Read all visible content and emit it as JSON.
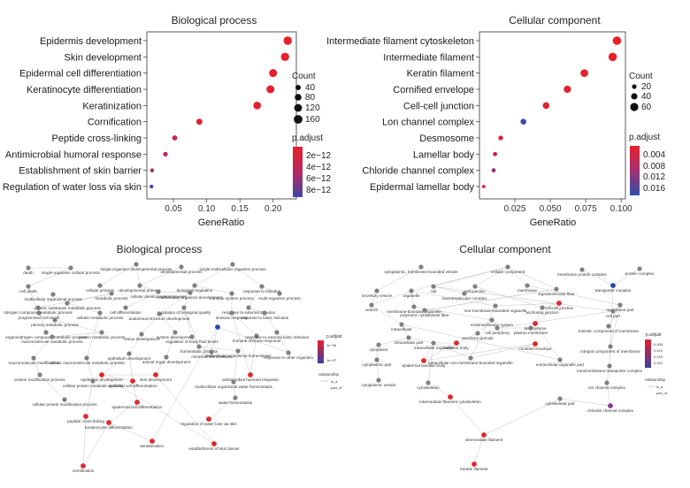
{
  "chart_data": [
    {
      "type": "scatter",
      "title": "Biological process",
      "xlabel": "GeneRatio",
      "xlim": [
        0.01,
        0.235
      ],
      "xticks": [
        "0.05",
        "0.10",
        "0.15",
        "0.20"
      ],
      "categories": [
        "Epidermis development",
        "Skin development",
        "Epidermal cell differentiation",
        "Keratinocyte differentiation",
        "Keratinization",
        "Cornification",
        "Peptide cross-linking",
        "Antimicrobial humoral response",
        "Establishment of skin barrier",
        "Regulation of water loss via skin"
      ],
      "gene_ratio": [
        0.222,
        0.218,
        0.2,
        0.196,
        0.176,
        0.089,
        0.052,
        0.038,
        0.018,
        0.017
      ],
      "count": [
        190,
        186,
        171,
        167,
        150,
        76,
        44,
        32,
        15,
        14
      ],
      "p_adjust": [
        1e-13,
        1e-13,
        2e-13,
        2e-13,
        4e-13,
        1e-12,
        3e-12,
        4e-12,
        6e-12,
        1e-11
      ],
      "legend": {
        "size_title": "Count",
        "size_values": [
          "40",
          "80",
          "120",
          "160"
        ],
        "color_title": "p.adjust",
        "color_values": [
          "2e−12",
          "4e−12",
          "6e−12",
          "8e−12"
        ]
      }
    },
    {
      "type": "scatter",
      "title": "Cellular component",
      "xlabel": "GeneRatio",
      "xlim": [
        0.0,
        0.103
      ],
      "xticks": [
        "0.025",
        "0.050",
        "0.075",
        "0.100"
      ],
      "categories": [
        "Intermediate filament cytoskeleton",
        "Intermediate filament",
        "Keratin filament",
        "Cornified envelope",
        "Cell-cell junction",
        "Lon channel complex",
        "Desmosome",
        "Lamellar body",
        "Chloride channel complex",
        "Epidermal lamellar body"
      ],
      "gene_ratio": [
        0.097,
        0.094,
        0.074,
        0.062,
        0.047,
        0.031,
        0.015,
        0.011,
        0.01,
        0.003
      ],
      "count": [
        66,
        64,
        50,
        42,
        32,
        21,
        10,
        7,
        6,
        2
      ],
      "p_adjust": [
        0.0005,
        0.0005,
        0.001,
        0.0012,
        0.0015,
        0.0175,
        0.002,
        0.004,
        0.011,
        0.003
      ],
      "legend": {
        "size_title": "Count",
        "size_values": [
          "20",
          "40",
          "60"
        ],
        "color_title": "p.adjust",
        "color_values": [
          "0.004",
          "0.008",
          "0.012",
          "0.016"
        ]
      }
    }
  ],
  "networks": [
    {
      "title": "Biological process",
      "legend": {
        "color_title": "p.adjust",
        "color_values": [
          "1e−06",
          "1e−07"
        ],
        "rel_title": "relationship",
        "rel_values": [
          "is_a",
          "part_of"
        ]
      },
      "nodes": [
        {
          "label": "death",
          "c": "gray"
        },
        {
          "label": "single-organism cellular process",
          "c": "gray"
        },
        {
          "label": "single-organism developmental process",
          "c": "gray"
        },
        {
          "label": "developmental process",
          "c": "gray"
        },
        {
          "label": "single-multicellular organism process",
          "c": "gray"
        },
        {
          "label": "cell death",
          "c": "gray"
        },
        {
          "label": "cellular process",
          "c": "gray"
        },
        {
          "label": "developmental process",
          "c": "gray"
        },
        {
          "label": "biological regulation",
          "c": "gray"
        },
        {
          "label": "response to stimulus",
          "c": "gray"
        },
        {
          "label": "multicellular organismal process",
          "c": "gray"
        },
        {
          "label": "metabolic process",
          "c": "gray"
        },
        {
          "label": "cellular developmental process",
          "c": "gray"
        },
        {
          "label": "multicellular organism development",
          "c": "gray"
        },
        {
          "label": "immune system process",
          "c": "gray"
        },
        {
          "label": "multi-organism process",
          "c": "gray"
        },
        {
          "label": "organic substance metabolic process",
          "c": "gray"
        },
        {
          "label": "nitrogen compound metabolic process",
          "c": "gray"
        },
        {
          "label": "cell differentiation",
          "c": "gray"
        },
        {
          "label": "regulation of biological quality",
          "c": "gray"
        },
        {
          "label": "response to external stimulus",
          "c": "gray"
        },
        {
          "label": "programmed cell death",
          "c": "gray"
        },
        {
          "label": "cellular metabolic process",
          "c": "gray"
        },
        {
          "label": "anatomical structure development",
          "c": "gray"
        },
        {
          "label": "immune response",
          "c": "gray"
        },
        {
          "label": "response to biotic stimulus",
          "c": "gray"
        },
        {
          "label": "primary metabolic process",
          "c": "gray"
        },
        {
          "label": "organonitrogen compound metabolic process",
          "c": "gray"
        },
        {
          "label": "protein metabolic process",
          "c": "gray"
        },
        {
          "label": "tissue development",
          "c": "gray"
        },
        {
          "label": "system development",
          "c": "gray"
        },
        {
          "label": "macromolecule metabolic process",
          "c": "gray"
        },
        {
          "label": "regulation of body fluid levels",
          "c": "gray"
        },
        {
          "label": "humoral immune response",
          "c": "gray"
        },
        {
          "label": "response to external biotic stimulus",
          "c": "gray"
        },
        {
          "label": "homeostatic process",
          "c": "gray"
        },
        {
          "label": "chemical homeostasis",
          "c": "gray"
        },
        {
          "label": "response to other organism",
          "c": "gray"
        },
        {
          "label": "macromolecule modification",
          "c": "gray"
        },
        {
          "label": "cellular macromolecule metabolic process",
          "c": "gray"
        },
        {
          "label": "epithelium development",
          "c": "gray"
        },
        {
          "label": "animal organ development",
          "c": "gray"
        },
        {
          "label": "multicellular organismal homeostasis",
          "c": "gray"
        },
        {
          "label": "protein modification process",
          "c": "gray"
        },
        {
          "label": "epidermis development",
          "c": "red"
        },
        {
          "label": "skin development",
          "c": "red"
        },
        {
          "label": "antimicrobial humoral response",
          "c": "red"
        },
        {
          "label": "cellular protein metabolic process",
          "c": "gray"
        },
        {
          "label": "epithelial cell differentiation",
          "c": "red"
        },
        {
          "label": "multicellular organismal water homeostasis",
          "c": "gray"
        },
        {
          "label": "cellular protein modification process",
          "c": "gray"
        },
        {
          "label": "epidermal cell differentiation",
          "c": "red"
        },
        {
          "label": "water homeostasis",
          "c": "gray"
        },
        {
          "label": "peptide cross-linking",
          "c": "red"
        },
        {
          "label": "keratinocyte differentiation",
          "c": "red"
        },
        {
          "label": "regulation of water loss via skin",
          "c": "red"
        },
        {
          "label": "keratinization",
          "c": "red"
        },
        {
          "label": "establishment of skin barrier",
          "c": "red"
        },
        {
          "label": "cornification",
          "c": "red"
        },
        {
          "label": "",
          "c": "blue"
        }
      ]
    },
    {
      "title": "Cellular component",
      "legend": {
        "color_title": "p.adjust",
        "color_values": [
          "0.005",
          "0.010",
          "0.015",
          "0.020"
        ],
        "rel_title": "relationship",
        "rel_values": [
          "is_a",
          "part_of"
        ]
      },
      "nodes": [
        {
          "label": "cytoplasmic, membrane-bounded vesicle",
          "c": "gray"
        },
        {
          "label": "cellular component",
          "c": "gray"
        },
        {
          "label": "membrane protein complex",
          "c": "gray"
        },
        {
          "label": "protein complex",
          "c": "gray"
        },
        {
          "label": "secretory vesicle",
          "c": "gray"
        },
        {
          "label": "organelle",
          "c": "gray"
        },
        {
          "label": "cell",
          "c": "gray"
        },
        {
          "label": "cell junction",
          "c": "gray"
        },
        {
          "label": "membrane",
          "c": "gray"
        },
        {
          "label": "supramolecular fiber",
          "c": "gray"
        },
        {
          "label": "transporter complex",
          "c": "blue"
        },
        {
          "label": "macromolecular complex",
          "c": "gray"
        },
        {
          "label": "vesicle",
          "c": "gray"
        },
        {
          "label": "membrane-bounded organelle",
          "c": "gray"
        },
        {
          "label": "non-membrane-bounded organelle",
          "c": "gray"
        },
        {
          "label": "anchoring junction",
          "c": "gray"
        },
        {
          "label": "cell-cell junction",
          "c": "red"
        },
        {
          "label": "membrane part",
          "c": "gray"
        },
        {
          "label": "polymeric cytoskeletal fiber",
          "c": "gray"
        },
        {
          "label": "cell part",
          "c": "gray"
        },
        {
          "label": "desmosome",
          "c": "red"
        },
        {
          "label": "endomembrane system",
          "c": "gray"
        },
        {
          "label": "cell periphery",
          "c": "gray"
        },
        {
          "label": "intrinsic component of membrane",
          "c": "gray"
        },
        {
          "label": "intracellular",
          "c": "gray"
        },
        {
          "label": "plasma membrane",
          "c": "gray"
        },
        {
          "label": "integral component of membrane",
          "c": "gray"
        },
        {
          "label": "secretory granule",
          "c": "gray"
        },
        {
          "label": "intracellular part",
          "c": "gray"
        },
        {
          "label": "cytoplasm",
          "c": "gray"
        },
        {
          "label": "intracellular organelle",
          "c": "gray"
        },
        {
          "label": "lamellar body",
          "c": "red"
        },
        {
          "label": "cornified envelope",
          "c": "red"
        },
        {
          "label": "transmembrane transporter complex",
          "c": "gray"
        },
        {
          "label": "ion channel complex",
          "c": "gray"
        },
        {
          "label": "cytoplasmic part",
          "c": "gray"
        },
        {
          "label": "epidermal lamellar body",
          "c": "red"
        },
        {
          "label": "intracellular non-membrane-bounded organelle",
          "c": "gray"
        },
        {
          "label": "extracellular organelle part",
          "c": "gray"
        },
        {
          "label": "cytoplasmic vesicle",
          "c": "gray"
        },
        {
          "label": "cytoskeleton",
          "c": "gray"
        },
        {
          "label": "chloride channel complex",
          "c": "purple"
        },
        {
          "label": "intermediate filament cytoskeleton",
          "c": "red"
        },
        {
          "label": "cytoskeletal part",
          "c": "gray"
        },
        {
          "label": "intermediate filament",
          "c": "red"
        },
        {
          "label": "keratin filament",
          "c": "red"
        }
      ]
    }
  ]
}
